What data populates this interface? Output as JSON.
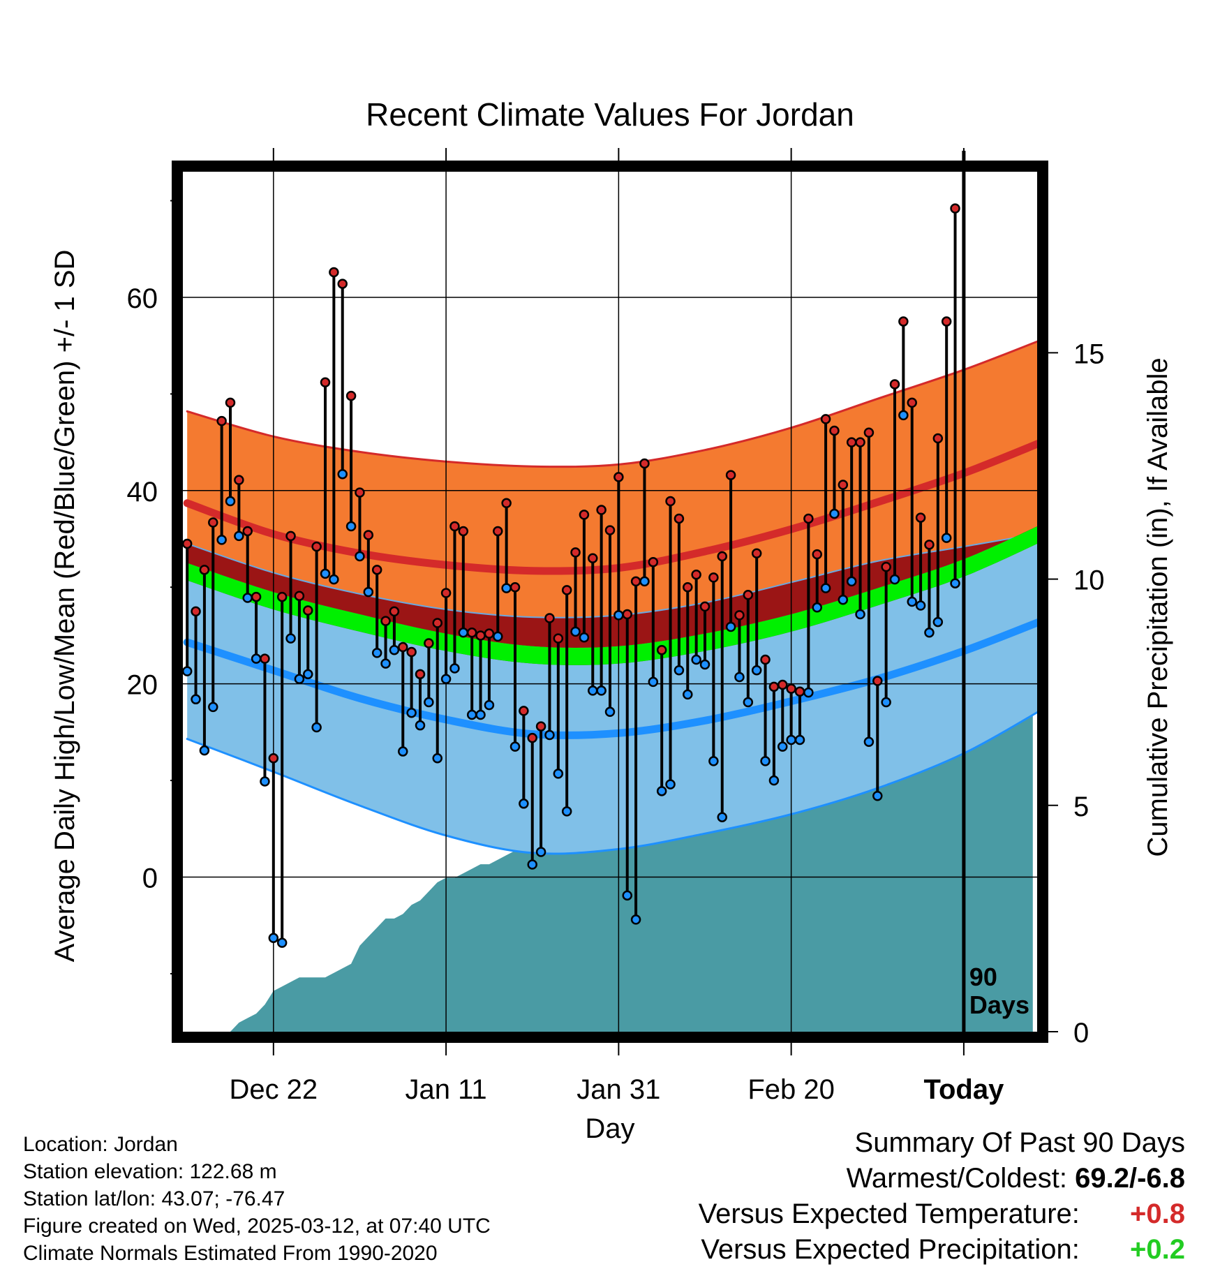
{
  "chart_data": {
    "type": "line",
    "title": "Recent Climate Values For Jordan",
    "xlabel": "Day",
    "ylabel": "Average Daily High/Low/Mean (Red/Blue/Green) +/- 1 SD",
    "y2label": "Cumulative Precipitation (in), If Available",
    "ylim": [
      -16,
      73
    ],
    "y2lim": [
      0,
      19
    ],
    "xlim": [
      -90.5,
      8.5
    ],
    "yticks": [
      "0",
      "20",
      "40",
      "60"
    ],
    "y2ticks": [
      "0",
      "5",
      "10",
      "15"
    ],
    "xticks": [
      {
        "day": -80,
        "label": "Dec 22"
      },
      {
        "day": -60,
        "label": "Jan 11"
      },
      {
        "day": -40,
        "label": "Jan 31"
      },
      {
        "day": -20,
        "label": "Feb 20"
      },
      {
        "day": 0,
        "label": "Today"
      }
    ],
    "today_label": [
      "90",
      "Days"
    ],
    "grid": true,
    "normals": {
      "days": [
        -90,
        -80,
        -70,
        -60,
        -50,
        -40,
        -30,
        -20,
        -10,
        0,
        9
      ],
      "high_upper": [
        48.2,
        45.6,
        44.0,
        43.0,
        42.5,
        42.7,
        44.2,
        46.5,
        49.5,
        52.5,
        55.6
      ],
      "high_mean": [
        38.7,
        35.5,
        33.5,
        32.3,
        31.7,
        32.0,
        33.7,
        36.0,
        38.8,
        41.8,
        45.0
      ],
      "mean_mean": [
        31.6,
        28.6,
        26.3,
        24.3,
        23.0,
        23.0,
        24.3,
        26.3,
        29.0,
        32.0,
        35.6
      ],
      "mean_half_width": 0.9,
      "low_upper": [
        34.5,
        31.5,
        29.3,
        27.7,
        26.9,
        27.1,
        28.4,
        30.5,
        32.7,
        34.2,
        35.6
      ],
      "low_mean": [
        24.3,
        21.4,
        18.5,
        16.3,
        14.8,
        14.9,
        16.2,
        18.2,
        20.5,
        23.4,
        26.5
      ],
      "low_lower": [
        14.3,
        10.9,
        7.4,
        4.3,
        2.5,
        2.9,
        4.5,
        6.5,
        9.2,
        12.8,
        17.3
      ]
    },
    "series": [
      {
        "name": "High",
        "days": [
          -90,
          -89,
          -88,
          -87,
          -86,
          -85,
          -84,
          -83,
          -82,
          -81,
          -80,
          -79,
          -78,
          -77,
          -76,
          -75,
          -74,
          -73,
          -72,
          -71,
          -70,
          -69,
          -68,
          -67,
          -66,
          -65,
          -64,
          -63,
          -62,
          -61,
          -60,
          -59,
          -58,
          -57,
          -56,
          -55,
          -54,
          -53,
          -52,
          -51,
          -50,
          -49,
          -48,
          -47,
          -46,
          -45,
          -44,
          -43,
          -42,
          -41,
          -40,
          -39,
          -38,
          -37,
          -36,
          -35,
          -34,
          -33,
          -32,
          -31,
          -30,
          -29,
          -28,
          -27,
          -26,
          -25,
          -24,
          -23,
          -22,
          -21,
          -20,
          -19,
          -18,
          -17,
          -16,
          -15,
          -14,
          -13,
          -12,
          -11,
          -10,
          -9,
          -8,
          -7,
          -6,
          -5,
          -4,
          -3,
          -2,
          -1
        ],
        "values": [
          34.5,
          27.5,
          31.8,
          36.7,
          47.2,
          49.1,
          41.1,
          35.8,
          29.0,
          22.6,
          12.3,
          29.0,
          35.3,
          29.1,
          27.6,
          34.2,
          51.2,
          62.6,
          61.4,
          49.8,
          39.8,
          35.4,
          31.8,
          26.5,
          27.5,
          23.8,
          23.3,
          21.0,
          24.2,
          26.3,
          29.4,
          36.3,
          35.8,
          25.3,
          25.0,
          25.2,
          35.8,
          38.7,
          30.0,
          17.2,
          14.4,
          15.6,
          26.8,
          24.7,
          29.7,
          33.6,
          37.5,
          33.0,
          38.0,
          35.9,
          41.4,
          27.2,
          30.6,
          42.8,
          32.6,
          23.5,
          38.9,
          37.1,
          30.0,
          31.3,
          28.0,
          31.0,
          33.2,
          41.6,
          27.1,
          29.2,
          33.5,
          22.5,
          19.7,
          19.9,
          19.5,
          19.2,
          37.1,
          33.4,
          47.4,
          46.2,
          40.6,
          45.0,
          45.0,
          46.0,
          20.3,
          32.1,
          51.0,
          57.5,
          49.1,
          37.2,
          34.4,
          45.4,
          57.5,
          69.2
        ]
      },
      {
        "name": "Low",
        "days": [
          -90,
          -89,
          -88,
          -87,
          -86,
          -85,
          -84,
          -83,
          -82,
          -81,
          -80,
          -79,
          -78,
          -77,
          -76,
          -75,
          -74,
          -73,
          -72,
          -71,
          -70,
          -69,
          -68,
          -67,
          -66,
          -65,
          -64,
          -63,
          -62,
          -61,
          -60,
          -59,
          -58,
          -57,
          -56,
          -55,
          -54,
          -53,
          -52,
          -51,
          -50,
          -49,
          -48,
          -47,
          -46,
          -45,
          -44,
          -43,
          -42,
          -41,
          -40,
          -39,
          -38,
          -37,
          -36,
          -35,
          -34,
          -33,
          -32,
          -31,
          -30,
          -29,
          -28,
          -27,
          -26,
          -25,
          -24,
          -23,
          -22,
          -21,
          -20,
          -19,
          -18,
          -17,
          -16,
          -15,
          -14,
          -13,
          -12,
          -11,
          -10,
          -9,
          -8,
          -7,
          -6,
          -5,
          -4,
          -3,
          -2,
          -1
        ],
        "values": [
          21.3,
          18.4,
          13.1,
          17.6,
          34.9,
          38.9,
          35.3,
          28.9,
          22.6,
          9.9,
          -6.3,
          -6.8,
          24.7,
          20.5,
          21.0,
          15.5,
          31.4,
          30.8,
          41.7,
          36.3,
          33.2,
          29.5,
          23.2,
          22.1,
          23.5,
          13.0,
          17.0,
          15.7,
          18.1,
          12.3,
          20.5,
          21.6,
          25.3,
          16.8,
          16.8,
          17.8,
          24.9,
          29.9,
          13.5,
          7.6,
          1.3,
          2.6,
          14.7,
          10.7,
          6.8,
          25.4,
          24.8,
          19.3,
          19.3,
          17.1,
          27.1,
          -1.9,
          -4.4,
          30.6,
          20.2,
          8.9,
          9.6,
          21.4,
          18.9,
          22.5,
          22.0,
          12.0,
          6.2,
          25.9,
          20.7,
          18.1,
          21.4,
          12.0,
          10.0,
          13.5,
          14.2,
          14.2,
          19.1,
          27.9,
          29.9,
          37.6,
          28.7,
          30.6,
          27.2,
          14.0,
          8.4,
          18.1,
          30.8,
          47.8,
          28.5,
          28.1,
          25.3,
          26.4,
          35.1,
          30.4
        ]
      }
    ],
    "precip": {
      "days": [
        -90,
        -85,
        -84,
        -83,
        -82,
        -81,
        -80,
        -79,
        -78,
        -77,
        -76,
        -75,
        -74,
        -73,
        -72,
        -71,
        -70,
        -69,
        -68,
        -67,
        -66,
        -65,
        -64,
        -63,
        -62,
        -61,
        -60,
        -59,
        -58,
        -57,
        -56,
        -55,
        -54,
        -53,
        -52,
        -51,
        -50,
        -49,
        -48,
        -47,
        -46,
        -45,
        -44,
        -43,
        -42,
        -41,
        -40,
        -39,
        -38,
        -37,
        -36,
        -35,
        -34,
        -33,
        -32,
        -31,
        -30,
        -29,
        -28,
        -27,
        -26,
        -25,
        -24,
        -23,
        -22,
        -21,
        -20,
        -19,
        -18,
        -17,
        -16,
        -15,
        -14,
        -13,
        -12,
        -11,
        -10,
        -9,
        -8,
        -7,
        -6,
        -5,
        -4,
        -3,
        -2,
        -1,
        0,
        1,
        2,
        3,
        4,
        5,
        6,
        7,
        8
      ],
      "values": [
        0,
        0,
        0.2,
        0.3,
        0.4,
        0.6,
        0.9,
        1.0,
        1.1,
        1.2,
        1.2,
        1.2,
        1.2,
        1.3,
        1.4,
        1.5,
        1.9,
        2.1,
        2.3,
        2.5,
        2.5,
        2.6,
        2.8,
        2.9,
        3.1,
        3.3,
        3.4,
        3.4,
        3.5,
        3.6,
        3.7,
        3.7,
        3.8,
        3.9,
        4.0,
        4.0,
        4.0,
        4.1,
        4.1,
        4.2,
        4.2,
        4.2,
        4.2,
        4.3,
        4.5,
        4.7,
        4.9,
        5.0,
        5.2,
        5.4,
        5.5,
        5.6,
        5.6,
        5.8,
        5.8,
        5.9,
        6.0,
        6.0,
        6.1,
        6.2,
        6.3,
        6.5,
        7.3,
        7.6,
        7.7,
        7.9,
        8.0,
        8.1,
        8.1,
        8.1,
        8.2,
        8.3,
        8.4,
        8.5,
        8.6,
        8.7,
        8.8,
        8.8,
        8.9,
        9.3,
        9.5,
        9.6,
        9.7,
        9.7,
        9.8,
        9.8,
        9.8,
        9.8,
        9.8,
        9.8,
        9.8,
        9.8,
        9.8,
        9.8,
        9.8
      ]
    },
    "colors": {
      "high_band": "#f47a30",
      "high_band_edge": "#d42a2a",
      "high_line": "#d42a2a",
      "mean_band": "#9b1515",
      "mean_line": "#00f000",
      "low_band": "#80c0e8",
      "low_band_edge": "#1e90ff",
      "low_line": "#1e90ff",
      "precip": "#4a9ba4",
      "high_dot": "#d42a2a",
      "low_dot": "#1e90ff"
    }
  },
  "meta": [
    "Location: Jordan",
    "Station elevation: 122.68 m",
    "Station lat/lon: 43.07; -76.47",
    "Figure created on Wed, 2025-03-12, at 07:40 UTC",
    "Climate Normals Estimated From 1990-2020"
  ],
  "summary": {
    "heading": "Summary Of Past 90 Days",
    "warmest_label": "Warmest/Coldest:",
    "warmest_value": "69.2/-6.8",
    "temp_label": "Versus Expected Temperature:",
    "temp_value": "+0.8",
    "temp_color": "#d42a2a",
    "precip_label": "Versus Expected Precipitation:",
    "precip_value": "+0.2",
    "precip_color": "#22cc22"
  }
}
